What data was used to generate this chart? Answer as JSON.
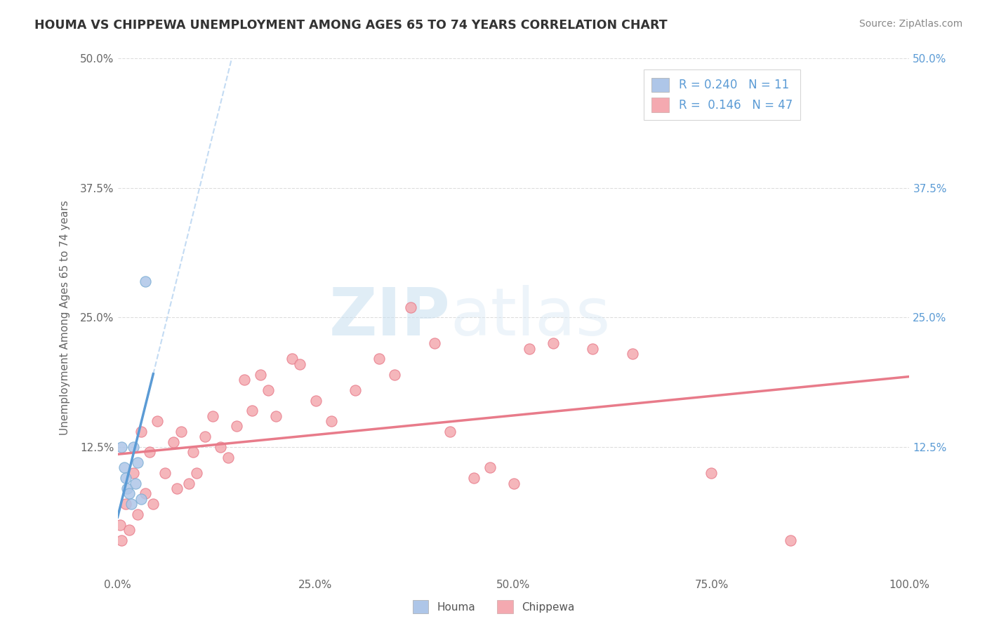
{
  "title": "HOUMA VS CHIPPEWA UNEMPLOYMENT AMONG AGES 65 TO 74 YEARS CORRELATION CHART",
  "source": "Source: ZipAtlas.com",
  "xlabel": "",
  "ylabel": "Unemployment Among Ages 65 to 74 years",
  "xlim": [
    0,
    100
  ],
  "ylim": [
    0,
    50
  ],
  "xtick_vals": [
    0,
    25,
    50,
    75,
    100
  ],
  "ytick_vals": [
    12.5,
    25.0,
    37.5,
    50.0
  ],
  "houma_x": [
    0.5,
    0.8,
    1.0,
    1.2,
    1.5,
    1.7,
    2.0,
    2.3,
    2.5,
    3.0,
    3.5
  ],
  "houma_y": [
    12.5,
    10.5,
    9.5,
    8.5,
    8.0,
    7.0,
    12.5,
    9.0,
    11.0,
    7.5,
    28.5
  ],
  "chippewa_x": [
    0.3,
    0.5,
    1.0,
    1.5,
    2.0,
    2.5,
    3.0,
    3.5,
    4.0,
    4.5,
    5.0,
    6.0,
    7.0,
    7.5,
    8.0,
    9.0,
    9.5,
    10.0,
    11.0,
    12.0,
    13.0,
    14.0,
    15.0,
    16.0,
    17.0,
    18.0,
    19.0,
    20.0,
    22.0,
    23.0,
    25.0,
    27.0,
    30.0,
    33.0,
    35.0,
    37.0,
    40.0,
    42.0,
    45.0,
    47.0,
    50.0,
    52.0,
    55.0,
    60.0,
    65.0,
    75.0,
    85.0
  ],
  "chippewa_y": [
    5.0,
    3.5,
    7.0,
    4.5,
    10.0,
    6.0,
    14.0,
    8.0,
    12.0,
    7.0,
    15.0,
    10.0,
    13.0,
    8.5,
    14.0,
    9.0,
    12.0,
    10.0,
    13.5,
    15.5,
    12.5,
    11.5,
    14.5,
    19.0,
    16.0,
    19.5,
    18.0,
    15.5,
    21.0,
    20.5,
    17.0,
    15.0,
    18.0,
    21.0,
    19.5,
    26.0,
    22.5,
    14.0,
    9.5,
    10.5,
    9.0,
    22.0,
    22.5,
    22.0,
    21.5,
    10.0,
    3.5
  ],
  "houma_color": "#aec6e8",
  "chippewa_color": "#f4a9b0",
  "houma_trend_color": "#5b9bd5",
  "chippewa_trend_color": "#e87b8a",
  "houma_R": 0.24,
  "houma_N": 11,
  "chippewa_R": 0.146,
  "chippewa_N": 47,
  "watermark_zip": "ZIP",
  "watermark_atlas": "atlas",
  "background_color": "#ffffff",
  "right_ytick_vals": [
    12.5,
    25.0,
    37.5,
    50.0
  ],
  "grid_color": "#dddddd",
  "houma_trend_x_end": 4.5,
  "chippewa_trend_intercept": 11.8,
  "chippewa_trend_slope": 0.075
}
